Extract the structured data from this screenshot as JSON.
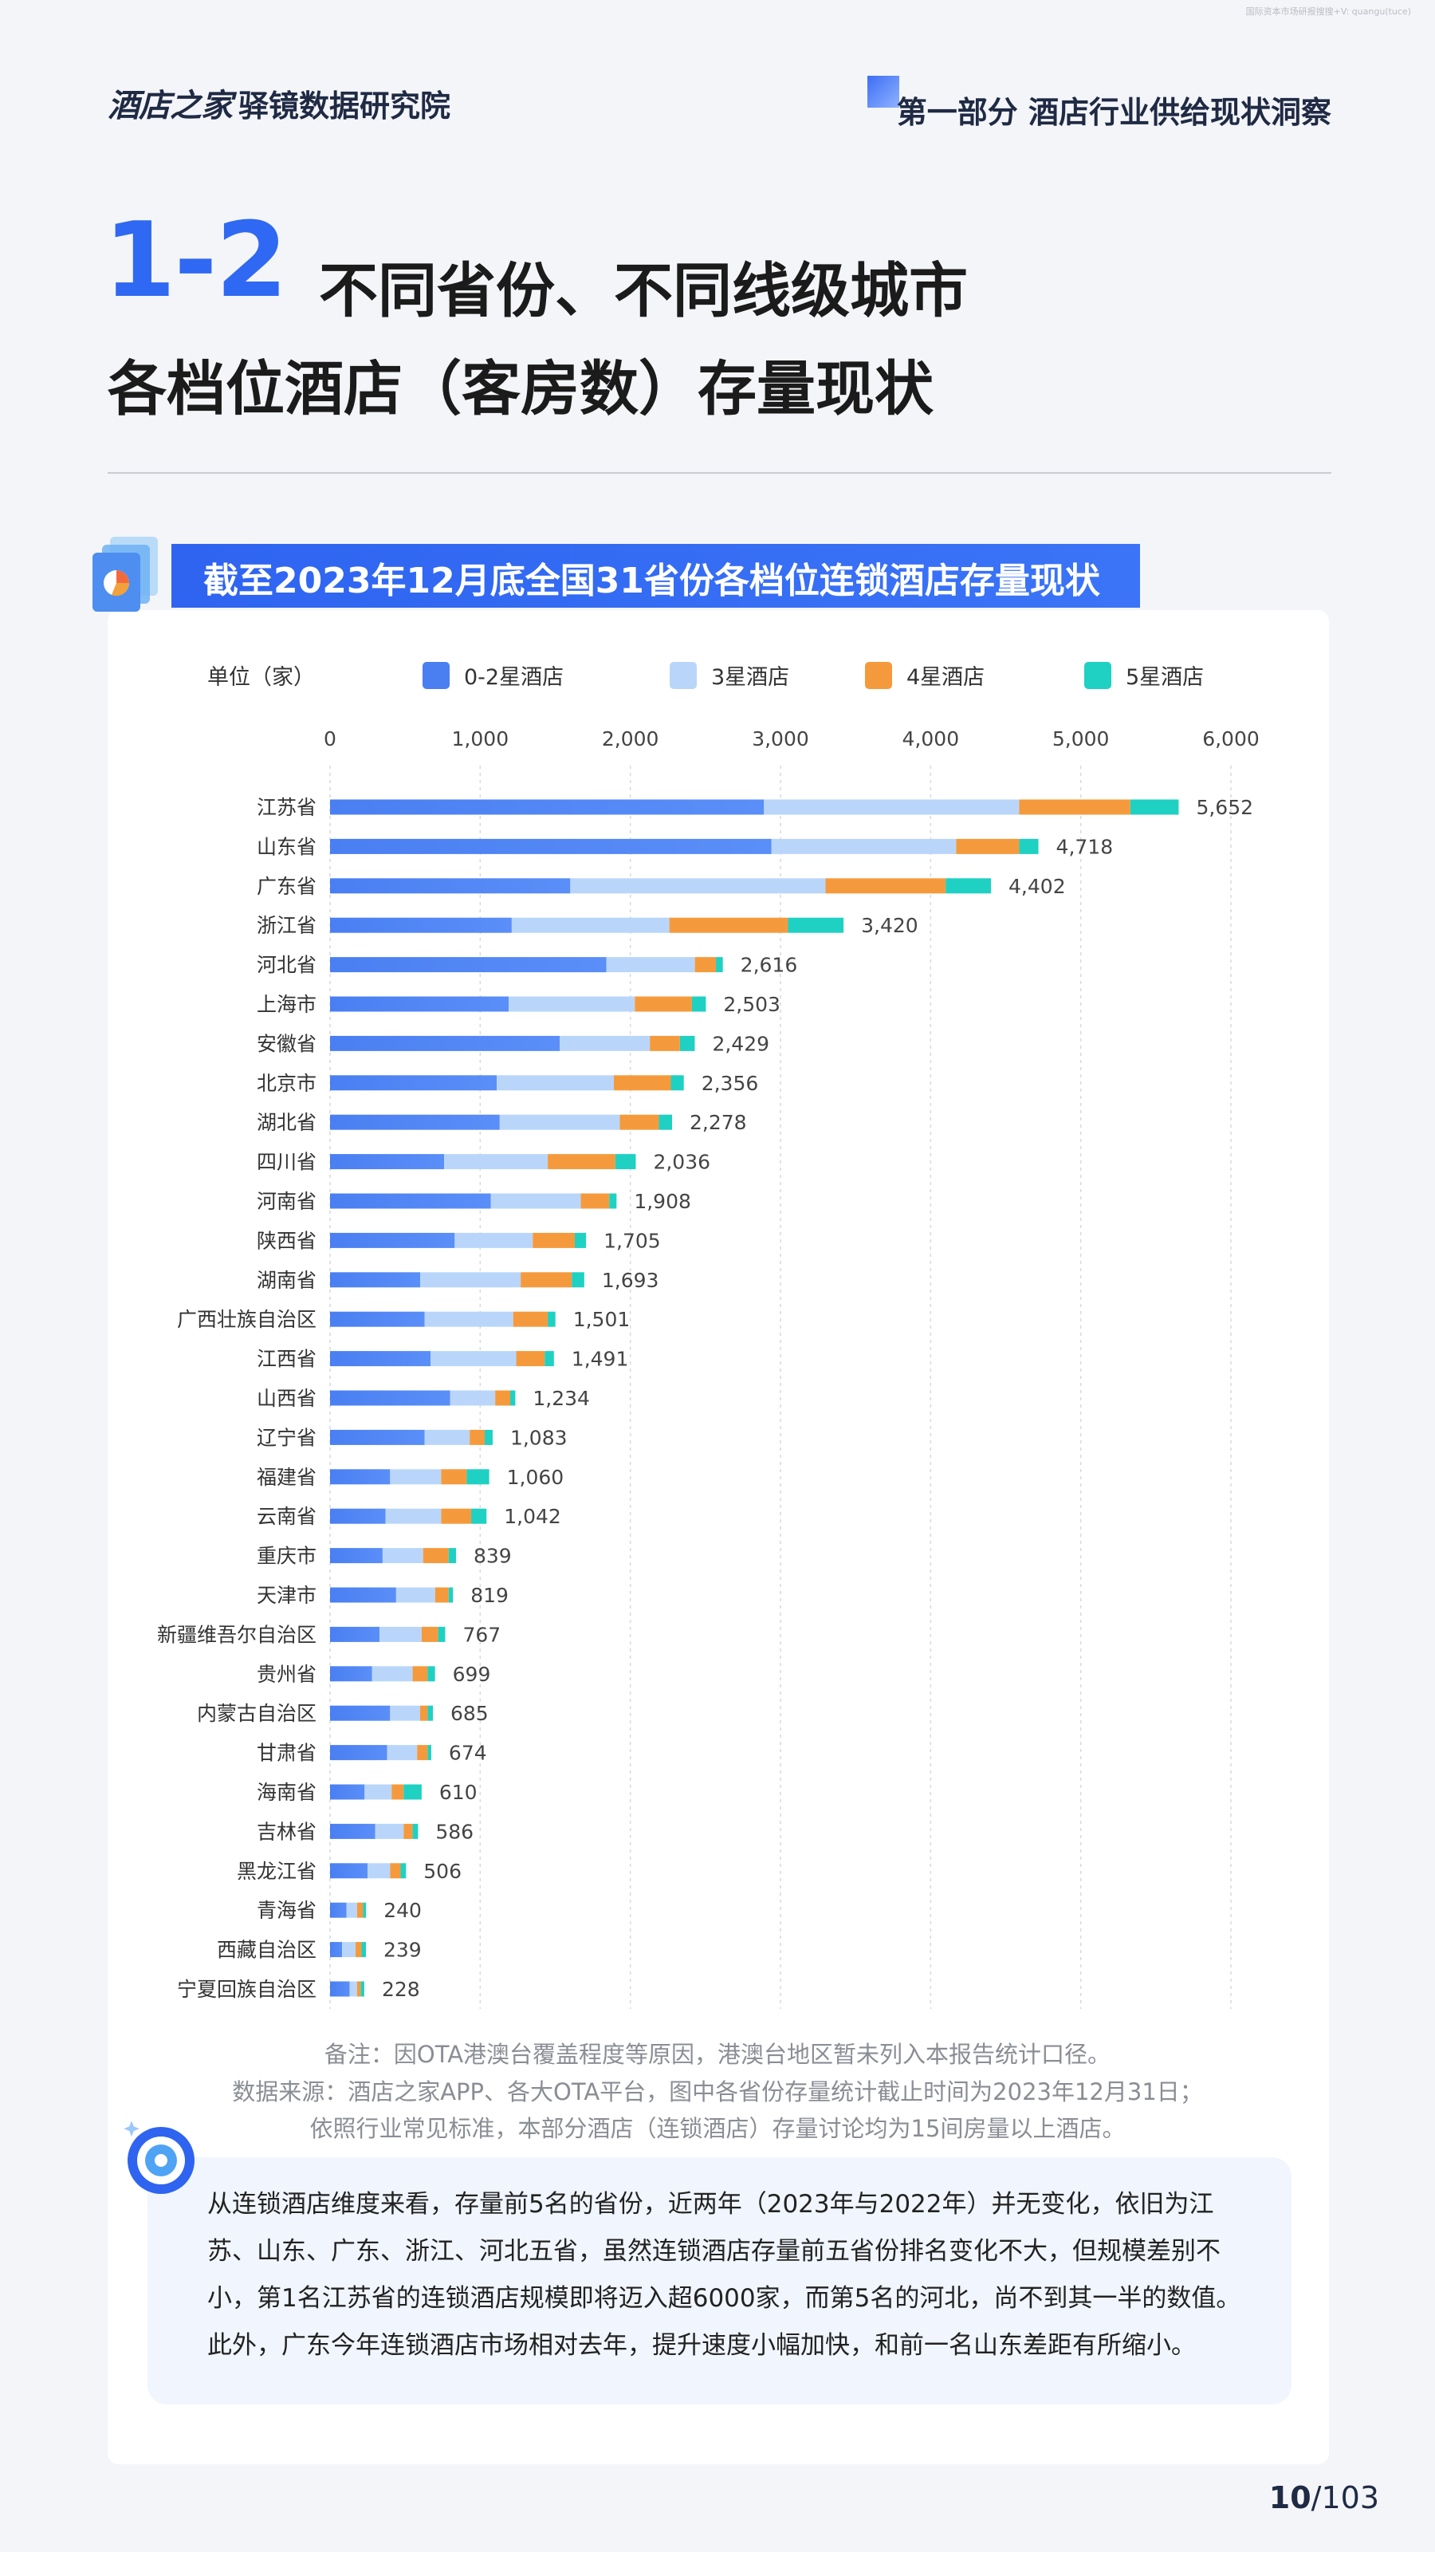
{
  "watermark": "国际资本市场研报搜搜+V: quangu(tuce)",
  "header": {
    "brand": "酒店之家",
    "sub_brand": "驿镜数据研究院",
    "section": "第一部分 酒店行业供给现状洞察"
  },
  "title": {
    "number": "1-2",
    "line1": "不同省份、不同线级城市",
    "line2": "各档位酒店（客房数）存量现状"
  },
  "banner": {
    "text": "截至2023年12月底全国31省份各档位连锁酒店存量现状"
  },
  "chart_data": {
    "type": "bar",
    "orientation": "horizontal",
    "stacked": true,
    "unit_label": "单位（家）",
    "xlim": [
      0,
      6000
    ],
    "x_ticks": [
      "0",
      "1,000",
      "2,000",
      "3,000",
      "4,000",
      "5,000",
      "6,000"
    ],
    "grid": "vertical dashed",
    "legend_position": "top",
    "categories": [
      "江苏省",
      "山东省",
      "广东省",
      "浙江省",
      "河北省",
      "上海市",
      "安徽省",
      "北京市",
      "湖北省",
      "四川省",
      "河南省",
      "陕西省",
      "湖南省",
      "广西壮族自治区",
      "江西省",
      "山西省",
      "辽宁省",
      "福建省",
      "云南省",
      "重庆市",
      "天津市",
      "新疆维吾尔自治区",
      "贵州省",
      "内蒙古自治区",
      "甘肃省",
      "海南省",
      "吉林省",
      "黑龙江省",
      "青海省",
      "西藏自治区",
      "宁夏回族自治区"
    ],
    "series": [
      {
        "name": "0-2星酒店",
        "color": "#4a7ff2",
        "values": [
          2890,
          2940,
          1600,
          1210,
          1840,
          1190,
          1530,
          1110,
          1130,
          760,
          1070,
          830,
          600,
          630,
          670,
          800,
          630,
          400,
          370,
          350,
          440,
          330,
          280,
          400,
          380,
          230,
          300,
          250,
          110,
          80,
          130
        ]
      },
      {
        "name": "3星酒店",
        "color": "#b9d6fa",
        "values": [
          1700,
          1230,
          1700,
          1050,
          590,
          840,
          600,
          780,
          800,
          690,
          600,
          520,
          670,
          590,
          570,
          300,
          300,
          340,
          370,
          270,
          260,
          280,
          270,
          200,
          200,
          180,
          190,
          150,
          70,
          90,
          50
        ]
      },
      {
        "name": "4星酒店",
        "color": "#f59a3c",
        "values": [
          740,
          420,
          800,
          790,
          140,
          380,
          200,
          380,
          260,
          450,
          190,
          280,
          340,
          230,
          190,
          100,
          100,
          170,
          200,
          170,
          90,
          110,
          100,
          50,
          70,
          80,
          60,
          70,
          40,
          40,
          25
        ]
      },
      {
        "name": "5星酒店",
        "color": "#1ed1c3",
        "values": [
          322,
          128,
          302,
          370,
          46,
          93,
          99,
          86,
          88,
          136,
          48,
          75,
          83,
          51,
          61,
          34,
          53,
          150,
          102,
          49,
          29,
          47,
          49,
          35,
          24,
          120,
          36,
          36,
          20,
          29,
          23
        ]
      }
    ],
    "totals": [
      "5,652",
      "4,718",
      "4,402",
      "3,420",
      "2,616",
      "2,503",
      "2,429",
      "2,356",
      "2,278",
      "2,036",
      "1,908",
      "1,705",
      "1,693",
      "1,501",
      "1,491",
      "1,234",
      "1,083",
      "1,060",
      "1,042",
      "839",
      "819",
      "767",
      "699",
      "685",
      "674",
      "610",
      "586",
      "506",
      "240",
      "239",
      "228"
    ]
  },
  "notes": {
    "remark": "备注：因OTA港澳台覆盖程度等原因，港澳台地区暂未列入本报告统计口径。",
    "source_line1": "数据来源：酒店之家APP、各大OTA平台，图中各省份存量统计截止时间为2023年12月31日；",
    "source_line2": "依照行业常见标准，本部分酒店（连锁酒店）存量讨论均为15间房量以上酒店。"
  },
  "summary": {
    "text": "从连锁酒店维度来看，存量前5名的省份，近两年（2023年与2022年）并无变化，依旧为江苏、山东、广东、浙江、河北五省，虽然连锁酒店存量前五省份排名变化不大，但规模差别不小，第1名江苏省的连锁酒店规模即将迈入超6000家，而第5名的河北，尚不到其一半的数值。此外，广东今年连锁酒店市场相对去年，提升速度小幅加快，和前一名山东差距有所缩小。"
  },
  "page": {
    "current": "10",
    "total": "/103"
  }
}
